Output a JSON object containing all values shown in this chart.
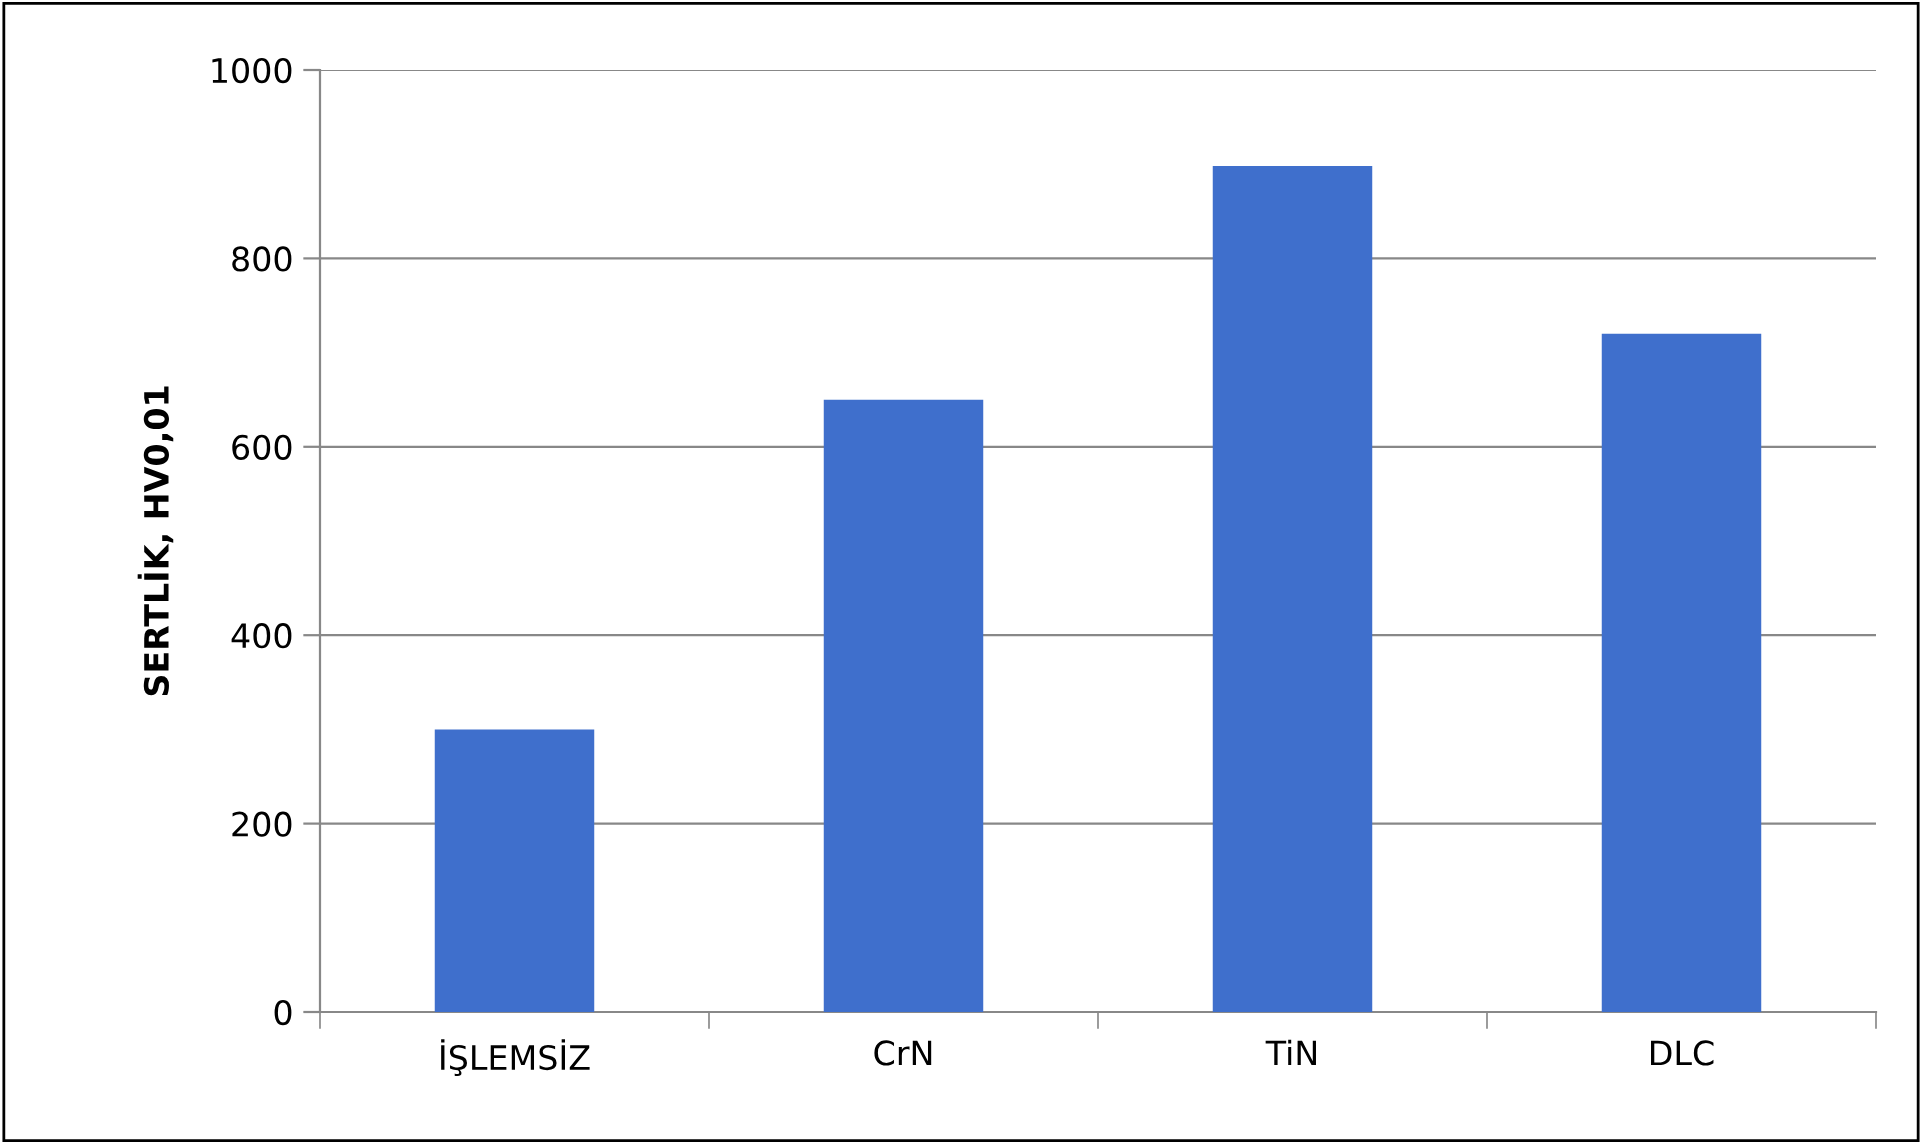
{
  "chart_data": {
    "type": "bar",
    "ylabel": "SERTLİK, HV0,01",
    "categories": [
      "İŞLEMSİZ",
      "CrN",
      "TiN",
      "DLC"
    ],
    "values": [
      300,
      650,
      898,
      720
    ],
    "color": "#3f6fcc",
    "ylim": [
      0,
      1000
    ],
    "yticks": [
      0,
      200,
      400,
      600,
      800,
      1000
    ],
    "grid": "y"
  }
}
